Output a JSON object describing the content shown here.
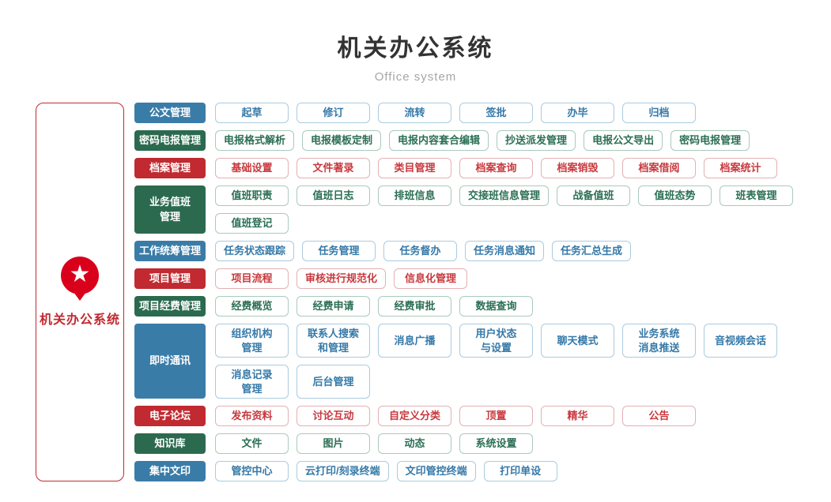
{
  "header": {
    "title": "机关办公系统",
    "subtitle": "Office system"
  },
  "root": {
    "label": "机关办公系统",
    "icon": "star-pin-icon"
  },
  "colors": {
    "blue": "#3a7ca8",
    "green": "#2b6a4f",
    "red": "#c02a30",
    "icon_red": "#d9001b"
  },
  "groups": [
    {
      "name": "公文管理",
      "color": "blue",
      "items": [
        "起草",
        "修订",
        "流转",
        "签批",
        "办毕",
        "归档"
      ]
    },
    {
      "name": "密码电报管理",
      "color": "green",
      "items": [
        "电报格式解析",
        "电报模板定制",
        "电报内容套合编辑",
        "抄送派发管理",
        "电报公文导出",
        "密码电报管理"
      ]
    },
    {
      "name": "档案管理",
      "color": "red",
      "items": [
        "基础设置",
        "文件著录",
        "类目管理",
        "档案查询",
        "档案销毁",
        "档案借阅",
        "档案统计"
      ]
    },
    {
      "name": "业务值班\n管理",
      "color": "green",
      "items": [
        "值班职责",
        "值班日志",
        "排班信息",
        "交接班信息管理",
        "战备值班",
        "值班态势",
        "班表管理",
        "值班登记"
      ]
    },
    {
      "name": "工作统筹管理",
      "color": "blue",
      "items": [
        "任务状态跟踪",
        "任务管理",
        "任务督办",
        "任务消息通知",
        "任务汇总生成"
      ]
    },
    {
      "name": "项目管理",
      "color": "red",
      "items": [
        "项目流程",
        "审核进行规范化",
        "信息化管理"
      ]
    },
    {
      "name": "项目经费管理",
      "color": "green",
      "items": [
        "经费概览",
        "经费申请",
        "经费审批",
        "数据查询"
      ]
    },
    {
      "name": "即时通讯",
      "color": "blue",
      "tall": true,
      "items": [
        "组织机构\n管理",
        "联系人搜索\n和管理",
        "消息广播",
        "用户状态\n与设置",
        "聊天模式",
        "业务系统\n消息推送",
        "音视频会话",
        "消息记录\n管理",
        "后台管理"
      ]
    },
    {
      "name": "电子论坛",
      "color": "red",
      "items": [
        "发布资料",
        "讨论互动",
        "自定义分类",
        "顶置",
        "精华",
        "公告"
      ]
    },
    {
      "name": "知识库",
      "color": "green",
      "items": [
        "文件",
        "图片",
        "动态",
        "系统设置"
      ]
    },
    {
      "name": "集中文印",
      "color": "blue",
      "items": [
        "管控中心",
        "云打印/刻录终端",
        "文印管控终端",
        "打印单设"
      ]
    }
  ]
}
